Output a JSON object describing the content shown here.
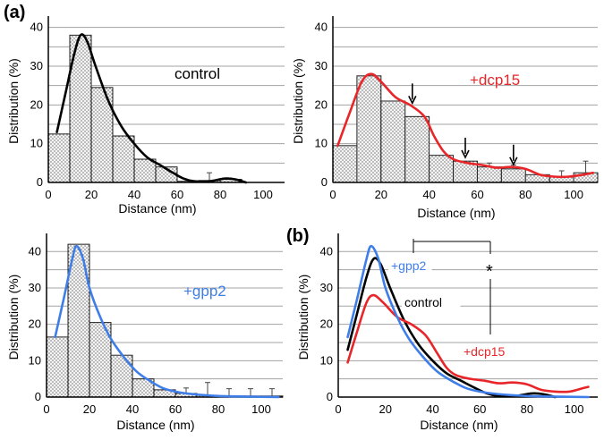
{
  "panel_labels": {
    "a": "(a)",
    "b": "(b)"
  },
  "significance_marker": "*",
  "colors": {
    "control": "#000000",
    "dcp15": "#e8262a",
    "gpp2": "#3f7ee8",
    "bar_fill": "#f2f2f2",
    "grid": "#9a9a9a"
  },
  "chart_data": [
    {
      "type": "bar",
      "panel": "a",
      "label": "control",
      "label_color": "#000000",
      "xlabel": "Distance (nm)",
      "ylabel": "Distribution (%)",
      "xlim": [
        0,
        110
      ],
      "ylim": [
        0,
        42
      ],
      "xticks": [
        "0",
        "20",
        "40",
        "60",
        "80",
        "100"
      ],
      "yticks": [
        "0",
        "10",
        "20",
        "30",
        "40"
      ],
      "bin_width": 10,
      "bins": [
        5,
        15,
        25,
        35,
        45,
        55,
        65,
        75,
        85,
        95
      ],
      "values": [
        12.5,
        38,
        24.5,
        12,
        6,
        4,
        0.3,
        0.5,
        0.8,
        0
      ],
      "error_bars": [
        [
          75,
          0.5,
          2
        ]
      ],
      "curve": {
        "color": "#000000",
        "points": [
          [
            4,
            13
          ],
          [
            8,
            23
          ],
          [
            12,
            33
          ],
          [
            15,
            38
          ],
          [
            18,
            36.5
          ],
          [
            22,
            30
          ],
          [
            28,
            21
          ],
          [
            34,
            14.5
          ],
          [
            40,
            10
          ],
          [
            46,
            6.5
          ],
          [
            52,
            4.5
          ],
          [
            58,
            2.5
          ],
          [
            63,
            1
          ],
          [
            68,
            0.3
          ],
          [
            75,
            0.3
          ],
          [
            82,
            1
          ],
          [
            87,
            0.8
          ],
          [
            92,
            0
          ]
        ]
      },
      "arrows": []
    },
    {
      "type": "bar",
      "panel": "a",
      "label": "+dcp15",
      "label_color": "#e8262a",
      "xlabel": "Distance (nm)",
      "ylabel": "Distribution (%)",
      "xlim": [
        0,
        110
      ],
      "ylim": [
        0,
        42
      ],
      "xticks": [
        "0",
        "20",
        "40",
        "60",
        "80",
        "100"
      ],
      "yticks": [
        "0",
        "10",
        "20",
        "30",
        "40"
      ],
      "bin_width": 10,
      "bins": [
        5,
        15,
        25,
        35,
        45,
        55,
        65,
        75,
        85,
        95,
        105
      ],
      "values": [
        9.5,
        27.5,
        21,
        17,
        7,
        5.5,
        4,
        3.5,
        2,
        1.5,
        2.5
      ],
      "error_bars": [
        [
          65,
          4,
          1
        ],
        [
          75,
          3.5,
          1
        ],
        [
          95,
          1.5,
          1.5
        ],
        [
          105,
          2.5,
          3
        ]
      ],
      "curve": {
        "color": "#e8262a",
        "points": [
          [
            2,
            9.5
          ],
          [
            7,
            18
          ],
          [
            12,
            26
          ],
          [
            16,
            28
          ],
          [
            20,
            26
          ],
          [
            26,
            22
          ],
          [
            32,
            20
          ],
          [
            38,
            17
          ],
          [
            42,
            12
          ],
          [
            46,
            8
          ],
          [
            50,
            6
          ],
          [
            56,
            5
          ],
          [
            62,
            4.5
          ],
          [
            68,
            3.8
          ],
          [
            74,
            4
          ],
          [
            80,
            3.5
          ],
          [
            86,
            2
          ],
          [
            92,
            1.5
          ],
          [
            98,
            1.5
          ],
          [
            104,
            2
          ],
          [
            108,
            2.5
          ]
        ]
      },
      "arrows": [
        [
          33,
          20
        ],
        [
          55,
          6
        ],
        [
          75,
          4.2
        ]
      ]
    },
    {
      "type": "bar",
      "panel": "a",
      "label": "+gpp2",
      "label_color": "#3f7ee8",
      "xlabel": "Distance (nm)",
      "ylabel": "Distribution (%)",
      "xlim": [
        0,
        110
      ],
      "ylim": [
        0,
        44
      ],
      "xticks": [
        "0",
        "20",
        "40",
        "60",
        "80",
        "100"
      ],
      "yticks": [
        "0",
        "10",
        "20",
        "30",
        "40"
      ],
      "bin_width": 10,
      "bins": [
        5,
        15,
        25,
        35,
        45,
        55,
        65,
        75,
        85,
        95,
        105
      ],
      "values": [
        16.5,
        42,
        20.5,
        11.5,
        5,
        2,
        1,
        0.5,
        0.3,
        0.3,
        0.3
      ],
      "error_bars": [
        [
          65,
          1,
          1.5
        ],
        [
          75,
          0.5,
          3.5
        ],
        [
          85,
          0.3,
          2
        ],
        [
          95,
          0.3,
          2
        ],
        [
          105,
          0.3,
          2
        ]
      ],
      "curve": {
        "color": "#3f7ee8",
        "points": [
          [
            4,
            16.5
          ],
          [
            8,
            27
          ],
          [
            12,
            38
          ],
          [
            14,
            41.5
          ],
          [
            17,
            38
          ],
          [
            20,
            30
          ],
          [
            25,
            22
          ],
          [
            30,
            16
          ],
          [
            36,
            11
          ],
          [
            42,
            7
          ],
          [
            48,
            4.5
          ],
          [
            54,
            2.5
          ],
          [
            60,
            1.5
          ],
          [
            68,
            0.8
          ],
          [
            80,
            0.3
          ],
          [
            95,
            0.1
          ],
          [
            108,
            0
          ]
        ]
      },
      "arrows": []
    },
    {
      "type": "line",
      "panel": "b",
      "xlabel": "Distance (nm)",
      "ylabel": "Distribution (%)",
      "xlim": [
        0,
        110
      ],
      "ylim": [
        0,
        44
      ],
      "xticks": [
        "0",
        "20",
        "40",
        "60",
        "80",
        "100"
      ],
      "yticks": [
        "0",
        "10",
        "20",
        "30",
        "40"
      ],
      "series": [
        {
          "name": "control",
          "color": "#000000",
          "points": [
            [
              4,
              13
            ],
            [
              8,
              23
            ],
            [
              12,
              33
            ],
            [
              15,
              38
            ],
            [
              18,
              36.5
            ],
            [
              22,
              30
            ],
            [
              28,
              21
            ],
            [
              34,
              14.5
            ],
            [
              40,
              10
            ],
            [
              46,
              6.5
            ],
            [
              52,
              4.5
            ],
            [
              58,
              2.5
            ],
            [
              63,
              1
            ],
            [
              68,
              0.3
            ],
            [
              75,
              0.3
            ],
            [
              82,
              1
            ],
            [
              87,
              0.8
            ],
            [
              92,
              0
            ]
          ]
        },
        {
          "name": "+dcp15",
          "color": "#e8262a",
          "points": [
            [
              4,
              9.5
            ],
            [
              8,
              18
            ],
            [
              12,
              26
            ],
            [
              15,
              28
            ],
            [
              19,
              26
            ],
            [
              25,
              22
            ],
            [
              31,
              20
            ],
            [
              37,
              17
            ],
            [
              42,
              12
            ],
            [
              46,
              8
            ],
            [
              50,
              6
            ],
            [
              56,
              5
            ],
            [
              62,
              4.5
            ],
            [
              68,
              3.8
            ],
            [
              74,
              4
            ],
            [
              80,
              3.5
            ],
            [
              86,
              2
            ],
            [
              92,
              1.5
            ],
            [
              98,
              1.5
            ],
            [
              104,
              2.5
            ],
            [
              106,
              2.8
            ]
          ]
        },
        {
          "name": "+gpp2",
          "color": "#3f7ee8",
          "points": [
            [
              4,
              16.5
            ],
            [
              8,
              27
            ],
            [
              12,
              38
            ],
            [
              14,
              41.5
            ],
            [
              17,
              38
            ],
            [
              20,
              30
            ],
            [
              25,
              22
            ],
            [
              30,
              16
            ],
            [
              36,
              11
            ],
            [
              42,
              7
            ],
            [
              48,
              4.5
            ],
            [
              54,
              2.5
            ],
            [
              60,
              1.5
            ],
            [
              68,
              0.8
            ],
            [
              80,
              0.3
            ],
            [
              95,
              0.1
            ],
            [
              106,
              0
            ]
          ]
        }
      ]
    }
  ]
}
